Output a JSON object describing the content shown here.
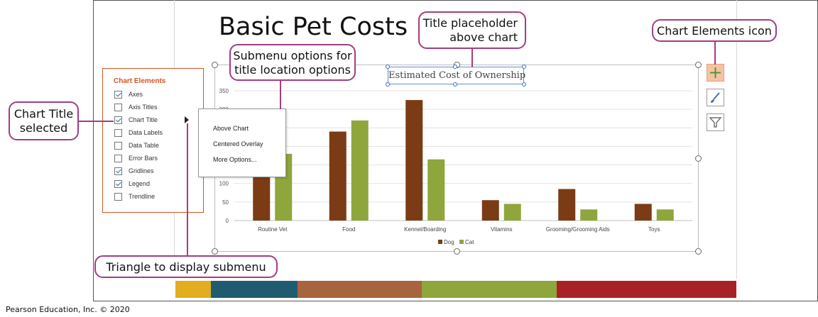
{
  "slide": {
    "title": "Basic Pet Costs",
    "strip_colors": [
      "#e2ad1f",
      "#1f5c72",
      "#a8643c",
      "#8fa63c",
      "#a82225"
    ]
  },
  "chart_element_buttons": [
    {
      "icon": "plus-icon"
    },
    {
      "icon": "paintbrush-icon"
    },
    {
      "icon": "filter-icon"
    }
  ],
  "chart_elements_panel": {
    "title": "Chart Elements",
    "items": [
      {
        "label": "Axes",
        "checked": true
      },
      {
        "label": "Axis Titles",
        "checked": false
      },
      {
        "label": "Chart Title",
        "checked": true
      },
      {
        "label": "Data Labels",
        "checked": false
      },
      {
        "label": "Data Table",
        "checked": false
      },
      {
        "label": "Error Bars",
        "checked": false
      },
      {
        "label": "Gridlines",
        "checked": true
      },
      {
        "label": "Legend",
        "checked": true
      },
      {
        "label": "Trendline",
        "checked": false
      }
    ]
  },
  "submenu": {
    "items": [
      "Above Chart",
      "Centered Overlay",
      "More Options..."
    ],
    "selected": "Above Chart"
  },
  "callouts": {
    "chart_title_selected": [
      "Chart Title",
      "selected"
    ],
    "submenu_options": [
      "Submenu options for",
      "title location options"
    ],
    "title_placeholder": [
      "Title placeholder",
      "above chart"
    ],
    "chart_elements_icon": "Chart Elements icon",
    "triangle": "Triangle to display submenu"
  },
  "copyright": "Pearson Education, Inc. © 2020",
  "chart_data": {
    "type": "bar",
    "title": "Estimated Cost of Ownership",
    "categories": [
      "Routine Vet",
      "Food",
      "Kennel/Boarding",
      "Vitamins",
      "Grooming/Grooming Aids",
      "Toys"
    ],
    "series": [
      {
        "name": "Dog",
        "values": [
          225,
          240,
          325,
          55,
          85,
          45
        ],
        "color": "#7b3b14"
      },
      {
        "name": "Cat",
        "values": [
          180,
          270,
          165,
          45,
          30,
          30
        ],
        "color": "#8fa63c"
      }
    ],
    "yticks": [
      0,
      50,
      100,
      150,
      200,
      250,
      300,
      350
    ],
    "ylim": [
      0,
      350
    ],
    "grid": true,
    "legend": "bottom",
    "xlabel": "",
    "ylabel": ""
  }
}
